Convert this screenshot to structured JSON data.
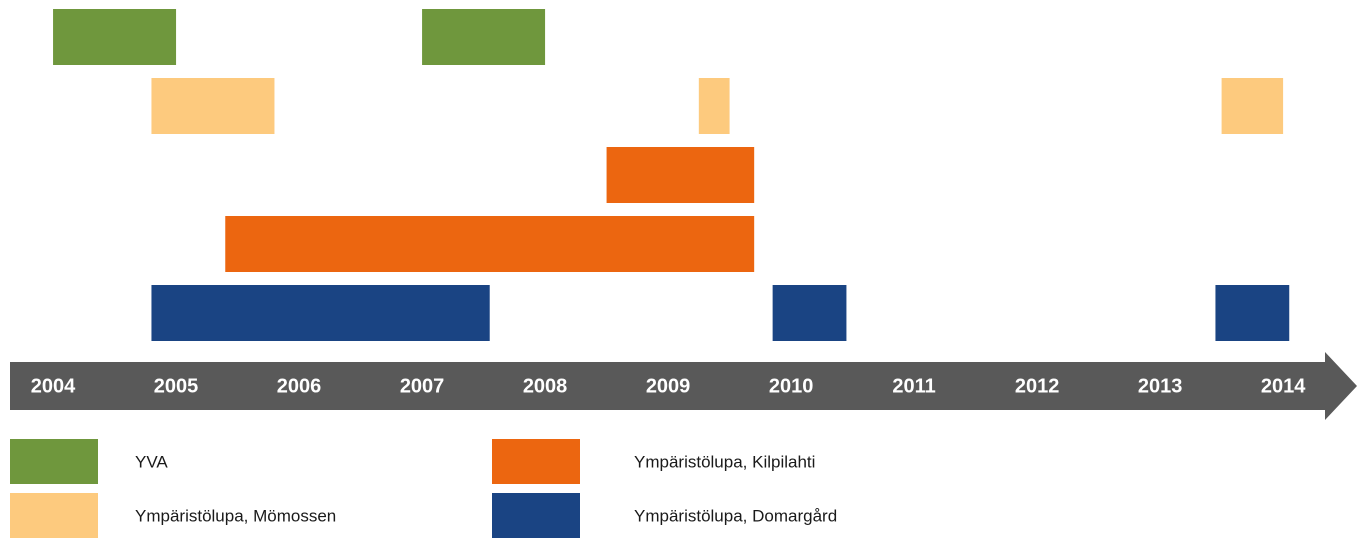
{
  "chart_data": {
    "type": "gantt",
    "xlim": [
      2003.65,
      2014.3
    ],
    "xticks": [
      2004,
      2005,
      2006,
      2007,
      2008,
      2009,
      2010,
      2011,
      2012,
      2013,
      2014
    ],
    "series": [
      {
        "name": "YVA",
        "color": "#6f973d",
        "lanes": [
          [
            [
              2004,
              2005
            ],
            [
              2007,
              2008
            ]
          ]
        ]
      },
      {
        "name": "Ympäristölupa, Mömossen",
        "color": "#fdca7e",
        "lanes": [
          [
            [
              2004.8,
              2005.8
            ],
            [
              2009.25,
              2009.5
            ],
            [
              2013.5,
              2014
            ]
          ]
        ]
      },
      {
        "name": "Ympäristölupa, Kilpilahti",
        "color": "#ec6610",
        "lanes": [
          [
            [
              2008.5,
              2009.7
            ]
          ],
          [
            [
              2005.4,
              2009.7
            ]
          ]
        ]
      },
      {
        "name": "Ympäristölupa, Domargård",
        "color": "#1a4483",
        "lanes": [
          [
            [
              2004.8,
              2007.55
            ],
            [
              2009.85,
              2010.45
            ],
            [
              2013.45,
              2014.05
            ]
          ]
        ]
      }
    ]
  }
}
